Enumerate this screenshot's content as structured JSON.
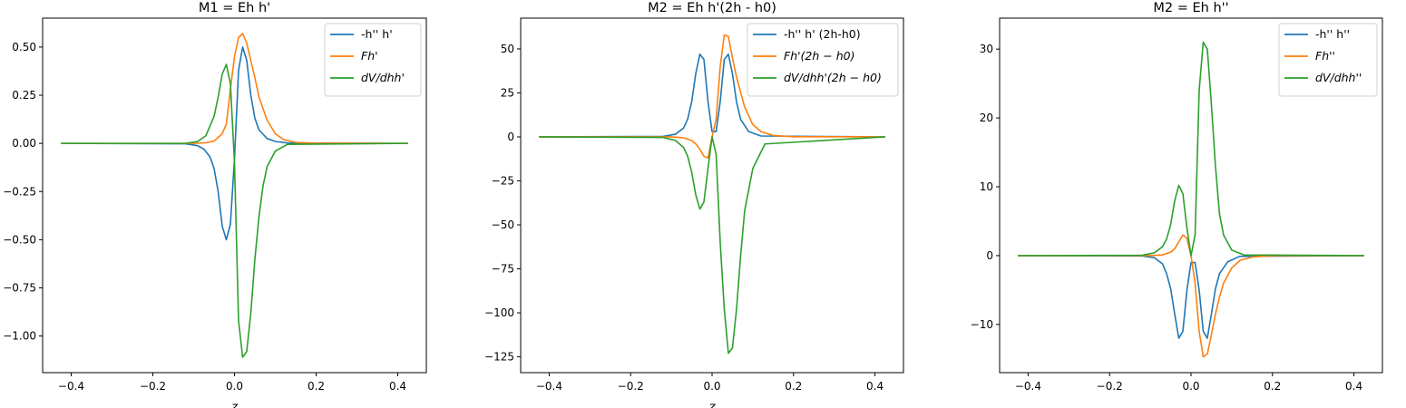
{
  "chart_data": [
    {
      "type": "line",
      "title": "M1 = Eh h'",
      "xlabel": "z",
      "ylabel": "",
      "xlim": [
        -0.47,
        0.47
      ],
      "ylim": [
        -1.19,
        0.65
      ],
      "xticks": [
        -0.4,
        -0.2,
        0.0,
        0.2,
        0.4
      ],
      "xtick_labels": [
        "−0.4",
        "−0.2",
        "0.0",
        "0.2",
        "0.4"
      ],
      "yticks": [
        0.5,
        0.25,
        0.0,
        -0.25,
        -0.5,
        -0.75,
        -1.0
      ],
      "ytick_labels": [
        "0.50",
        "0.25",
        "0.00",
        "−0.25",
        "−0.50",
        "−0.75",
        "−1.00"
      ],
      "legend_position": "top-right",
      "grid": false,
      "series": [
        {
          "name": "-h'' h'",
          "color": "#1f77b4",
          "italic": false,
          "x": [
            -0.425,
            -0.12,
            -0.09,
            -0.075,
            -0.06,
            -0.05,
            -0.04,
            -0.03,
            -0.02,
            -0.01,
            0.0,
            0.01,
            0.02,
            0.03,
            0.04,
            0.05,
            0.06,
            0.08,
            0.1,
            0.13,
            0.425
          ],
          "y": [
            0.0,
            -0.002,
            -0.012,
            -0.03,
            -0.07,
            -0.13,
            -0.25,
            -0.43,
            -0.5,
            -0.42,
            -0.08,
            0.38,
            0.5,
            0.43,
            0.25,
            0.13,
            0.07,
            0.025,
            0.01,
            0.002,
            0.0
          ]
        },
        {
          "name": "Fh'",
          "color": "#ff7f0e",
          "italic": true,
          "x": [
            -0.425,
            -0.1,
            -0.07,
            -0.05,
            -0.03,
            -0.02,
            -0.01,
            0.0,
            0.01,
            0.02,
            0.03,
            0.04,
            0.05,
            0.06,
            0.08,
            0.1,
            0.12,
            0.15,
            0.2,
            0.425
          ],
          "y": [
            0.0,
            0.0,
            0.003,
            0.012,
            0.05,
            0.1,
            0.28,
            0.45,
            0.55,
            0.57,
            0.52,
            0.43,
            0.34,
            0.24,
            0.12,
            0.05,
            0.02,
            0.005,
            0.001,
            0.0
          ]
        },
        {
          "name": "dV/dhh'",
          "color": "#2ca02c",
          "italic": true,
          "x": [
            -0.425,
            -0.12,
            -0.09,
            -0.07,
            -0.05,
            -0.04,
            -0.03,
            -0.02,
            -0.01,
            0.0,
            0.01,
            0.02,
            0.03,
            0.04,
            0.05,
            0.06,
            0.07,
            0.08,
            0.1,
            0.13,
            0.425
          ],
          "y": [
            0.0,
            0.0,
            0.01,
            0.04,
            0.14,
            0.24,
            0.36,
            0.41,
            0.31,
            -0.1,
            -0.92,
            -1.11,
            -1.08,
            -0.88,
            -0.6,
            -0.38,
            -0.22,
            -0.12,
            -0.04,
            -0.005,
            0.0
          ]
        }
      ]
    },
    {
      "type": "line",
      "title": "M2 = Eh h'(2h - h0)",
      "xlabel": "z",
      "ylabel": "",
      "xlim": [
        -0.47,
        0.47
      ],
      "ylim": [
        -134,
        67.5
      ],
      "xticks": [
        -0.4,
        -0.2,
        0.0,
        0.2,
        0.4
      ],
      "xtick_labels": [
        "−0.4",
        "−0.2",
        "0.0",
        "0.2",
        "0.4"
      ],
      "yticks": [
        50,
        25,
        0,
        -25,
        -50,
        -75,
        -100,
        -125
      ],
      "ytick_labels": [
        "50",
        "25",
        "0",
        "−25",
        "−50",
        "−75",
        "−100",
        "−125"
      ],
      "legend_position": "top-right",
      "grid": false,
      "series": [
        {
          "name": "-h'' h' (2h-h0)",
          "color": "#1f77b4",
          "italic": false,
          "x": [
            -0.425,
            -0.12,
            -0.09,
            -0.07,
            -0.06,
            -0.05,
            -0.04,
            -0.03,
            -0.02,
            -0.01,
            0.0,
            0.01,
            0.02,
            0.03,
            0.04,
            0.05,
            0.06,
            0.07,
            0.09,
            0.12,
            0.425
          ],
          "y": [
            0.0,
            0.3,
            1.5,
            5,
            10,
            20,
            36,
            47,
            44,
            20,
            3,
            3,
            20,
            44,
            47,
            36,
            20,
            10,
            3,
            0.5,
            0.0
          ]
        },
        {
          "name": "Fh'(2h − h0)",
          "color": "#ff7f0e",
          "italic": true,
          "x": [
            -0.425,
            -0.1,
            -0.07,
            -0.05,
            -0.04,
            -0.03,
            -0.02,
            -0.01,
            0.0,
            0.01,
            0.02,
            0.03,
            0.04,
            0.05,
            0.06,
            0.08,
            0.1,
            0.12,
            0.15,
            0.2,
            0.425
          ],
          "y": [
            0.0,
            0.0,
            -0.5,
            -2,
            -4,
            -7,
            -11,
            -12,
            0,
            10,
            40,
            58,
            57,
            45,
            34,
            17,
            7,
            3,
            0.8,
            0.1,
            0.0
          ]
        },
        {
          "name": "dV/dhh'(2h − h0)",
          "color": "#2ca02c",
          "italic": true,
          "x": [
            -0.425,
            -0.12,
            -0.09,
            -0.07,
            -0.06,
            -0.05,
            -0.04,
            -0.03,
            -0.02,
            -0.01,
            0.0,
            0.01,
            0.02,
            0.03,
            0.04,
            0.05,
            0.06,
            0.07,
            0.08,
            0.1,
            0.13,
            0.425
          ],
          "y": [
            0.0,
            -0.3,
            -2,
            -6,
            -11,
            -20,
            -33,
            -41,
            -37,
            -18,
            0,
            -10,
            -60,
            -98,
            -123,
            -120,
            -98,
            -68,
            -42,
            -18,
            -4,
            0.0
          ]
        }
      ]
    },
    {
      "type": "line",
      "title": "M2 = Eh h''",
      "xlabel": "",
      "ylabel": "",
      "xlim": [
        -0.47,
        0.47
      ],
      "ylim": [
        -17,
        34.5
      ],
      "xticks": [
        -0.4,
        -0.2,
        0.0,
        0.2,
        0.4
      ],
      "xtick_labels": [
        "−0.4",
        "−0.2",
        "0.0",
        "0.2",
        "0.4"
      ],
      "yticks": [
        30,
        20,
        10,
        0,
        -10
      ],
      "ytick_labels": [
        "30",
        "20",
        "10",
        "0",
        "−10"
      ],
      "legend_position": "top-right",
      "grid": false,
      "series": [
        {
          "name": "-h'' h''",
          "color": "#1f77b4",
          "italic": false,
          "x": [
            -0.425,
            -0.12,
            -0.09,
            -0.07,
            -0.06,
            -0.05,
            -0.04,
            -0.03,
            -0.02,
            -0.01,
            0.0,
            0.01,
            0.02,
            0.03,
            0.04,
            0.05,
            0.06,
            0.07,
            0.09,
            0.12,
            0.425
          ],
          "y": [
            0.0,
            -0.05,
            -0.3,
            -1.2,
            -2.6,
            -4.8,
            -8.5,
            -12,
            -11,
            -5,
            -1,
            -1,
            -5,
            -11,
            -12,
            -8.5,
            -4.8,
            -2.6,
            -0.9,
            -0.1,
            0.0
          ]
        },
        {
          "name": "Fh''",
          "color": "#ff7f0e",
          "italic": true,
          "x": [
            -0.425,
            -0.1,
            -0.07,
            -0.05,
            -0.04,
            -0.03,
            -0.02,
            -0.01,
            0.0,
            0.01,
            0.02,
            0.03,
            0.04,
            0.05,
            0.06,
            0.07,
            0.08,
            0.1,
            0.12,
            0.15,
            0.2,
            0.425
          ],
          "y": [
            0.0,
            0.0,
            0.1,
            0.5,
            1,
            2,
            3,
            2.5,
            0,
            -4,
            -11,
            -14.7,
            -14.3,
            -11.5,
            -8.5,
            -6,
            -4,
            -1.8,
            -0.7,
            -0.2,
            -0.02,
            0.0
          ]
        },
        {
          "name": "dV/dhh''",
          "color": "#2ca02c",
          "italic": true,
          "x": [
            -0.425,
            -0.12,
            -0.09,
            -0.07,
            -0.06,
            -0.05,
            -0.04,
            -0.03,
            -0.02,
            -0.01,
            0.0,
            0.01,
            0.02,
            0.03,
            0.04,
            0.05,
            0.06,
            0.07,
            0.08,
            0.1,
            0.13,
            0.425
          ],
          "y": [
            0.0,
            0.05,
            0.4,
            1.3,
            2.4,
            4.5,
            8,
            10.2,
            9,
            4,
            0,
            3,
            24,
            31,
            30,
            22,
            13,
            6,
            3,
            0.8,
            0.1,
            0.0
          ]
        }
      ]
    }
  ],
  "partial_xlabels": [
    "z",
    "z"
  ]
}
